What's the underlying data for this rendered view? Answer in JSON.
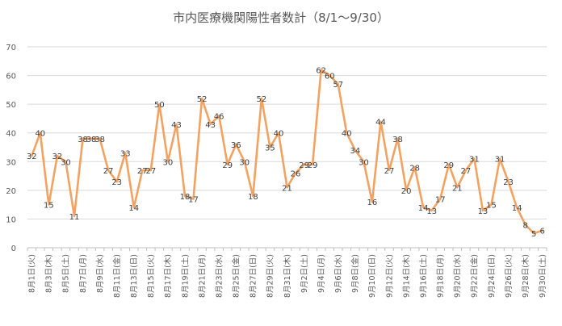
{
  "chart_data": {
    "type": "line",
    "title": "市内医療機関陽性者数計（8/1～9/30）",
    "xlabel": "",
    "ylabel": "",
    "ylim": [
      0,
      70
    ],
    "yticks": [
      0,
      10,
      20,
      30,
      40,
      50,
      60,
      70
    ],
    "grid": true,
    "legend": "none",
    "line_color": "#f4a261",
    "tick_labels": [
      "8月1日(火)",
      "8月3日(木)",
      "8月5日(土)",
      "8月7日(月)",
      "8月9日(水)",
      "8月11日(金)",
      "8月13日(日)",
      "8月15日(火)",
      "8月17日(木)",
      "8月19日(土)",
      "8月21日(月)",
      "8月23日(水)",
      "8月25日(金)",
      "8月27日(日)",
      "8月29日(火)",
      "8月31日(木)",
      "9月2日(土)",
      "9月4日(月)",
      "9月6日(水)",
      "9月8日(金)",
      "9月10日(日)",
      "9月12日(火)",
      "9月14日(木)",
      "9月16日(土)",
      "9月18日(月)",
      "9月20日(水)",
      "9月22日(金)",
      "9月24日(日)",
      "9月26日(火)",
      "9月28日(木)",
      "9月30日(土)"
    ],
    "values": [
      32,
      40,
      15,
      32,
      30,
      11,
      38,
      38,
      38,
      27,
      23,
      33,
      14,
      27,
      27,
      50,
      30,
      43,
      18,
      17,
      52,
      43,
      46,
      29,
      36,
      30,
      18,
      52,
      35,
      40,
      21,
      26,
      29,
      29,
      62,
      60,
      57,
      40,
      34,
      30,
      16,
      44,
      27,
      38,
      20,
      28,
      14,
      13,
      17,
      29,
      21,
      27,
      31,
      13,
      15,
      31,
      23,
      14,
      8,
      5,
      6
    ]
  }
}
